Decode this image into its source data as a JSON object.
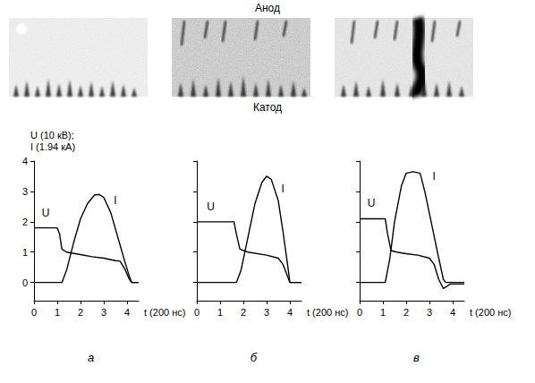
{
  "figure": {
    "top_label": "Анод",
    "middle_label": "Катод"
  },
  "chart_data": [
    {
      "type": "line",
      "panel": "а",
      "xlabel": "t (200 нс)",
      "ylabel": [
        "U (10 кВ);",
        "I (1.94 кА)"
      ],
      "xlim": [
        0,
        4.5
      ],
      "xticks": [
        0,
        1,
        2,
        3,
        4
      ],
      "ylim": [
        -0.6,
        4
      ],
      "yticks": [
        0,
        1,
        2,
        3,
        4
      ],
      "tick_labels": true,
      "grid": false,
      "series": [
        {
          "name": "U",
          "color": "#000000",
          "label_at": [
            0.5,
            2.3
          ],
          "x": [
            0,
            1.0,
            1.1,
            1.2,
            1.4,
            2.0,
            2.5,
            3.0,
            3.5,
            3.7,
            3.9,
            4.1,
            4.2,
            4.5
          ],
          "values": [
            1.8,
            1.8,
            1.6,
            1.1,
            1.0,
            0.92,
            0.85,
            0.8,
            0.72,
            0.7,
            0.45,
            0.1,
            0,
            0
          ]
        },
        {
          "name": "I",
          "color": "#000000",
          "label_at": [
            3.5,
            2.7
          ],
          "x": [
            0,
            1.2,
            1.4,
            1.7,
            2.0,
            2.3,
            2.6,
            2.8,
            3.0,
            3.3,
            3.6,
            3.9,
            4.1,
            4.2,
            4.5
          ],
          "values": [
            0,
            0,
            0.4,
            1.3,
            2.1,
            2.6,
            2.88,
            2.9,
            2.8,
            2.3,
            1.5,
            0.7,
            0.2,
            0,
            0
          ]
        }
      ]
    },
    {
      "type": "line",
      "panel": "б",
      "xlabel": "t (200 нс)",
      "xlim": [
        0,
        4.5
      ],
      "xticks": [
        0,
        1,
        2,
        3,
        4
      ],
      "ylim": [
        -0.6,
        4
      ],
      "yticks": [
        0,
        1,
        2,
        3,
        4
      ],
      "tick_labels": "x",
      "grid": false,
      "series": [
        {
          "name": "U",
          "color": "#000000",
          "label_at": [
            0.6,
            2.5
          ],
          "x": [
            0,
            1.6,
            1.7,
            1.85,
            2.2,
            3.0,
            3.5,
            3.7,
            3.9,
            4.0,
            4.5
          ],
          "values": [
            2.0,
            2.0,
            1.6,
            1.1,
            1.0,
            0.9,
            0.8,
            0.6,
            0.2,
            0,
            0
          ]
        },
        {
          "name": "I",
          "color": "#000000",
          "label_at": [
            3.7,
            3.1
          ],
          "x": [
            0,
            1.7,
            1.9,
            2.2,
            2.5,
            2.8,
            3.0,
            3.2,
            3.5,
            3.7,
            3.9,
            4.0,
            4.5
          ],
          "values": [
            0,
            0,
            0.4,
            1.5,
            2.6,
            3.3,
            3.5,
            3.4,
            2.7,
            1.7,
            0.6,
            0,
            0
          ]
        }
      ]
    },
    {
      "type": "line",
      "panel": "в",
      "xlabel": "t (200 нс)",
      "xlim": [
        0,
        4.5
      ],
      "xticks": [
        0,
        1,
        2,
        3,
        4
      ],
      "ylim": [
        -0.6,
        4
      ],
      "yticks": [
        0,
        1,
        2,
        3,
        4
      ],
      "tick_labels": "x",
      "grid": false,
      "series": [
        {
          "name": "U",
          "color": "#000000",
          "label_at": [
            0.5,
            2.6
          ],
          "x": [
            0,
            1.1,
            1.2,
            1.35,
            1.6,
            2.0,
            2.5,
            3.0,
            3.2,
            3.4,
            3.6,
            3.8,
            3.9,
            4.5
          ],
          "values": [
            2.1,
            2.1,
            1.6,
            1.05,
            1.0,
            0.95,
            0.9,
            0.8,
            0.6,
            0.1,
            -0.2,
            -0.1,
            -0.05,
            -0.05
          ]
        },
        {
          "name": "I",
          "color": "#000000",
          "label_at": [
            3.2,
            3.5
          ],
          "x": [
            0,
            1.1,
            1.3,
            1.5,
            1.8,
            2.0,
            2.3,
            2.6,
            2.8,
            3.1,
            3.4,
            3.6,
            3.7,
            4.5
          ],
          "values": [
            0,
            0,
            0.8,
            2.0,
            3.2,
            3.6,
            3.65,
            3.6,
            3.0,
            1.9,
            0.8,
            0.1,
            0,
            0
          ]
        }
      ]
    }
  ]
}
